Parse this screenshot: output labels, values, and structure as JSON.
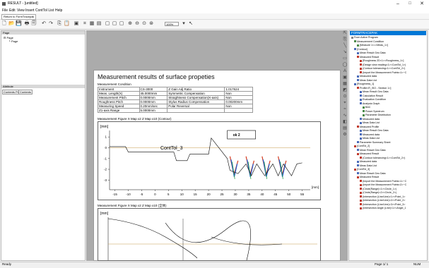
{
  "window": {
    "title": "RESULT - [untitled]",
    "controls": {
      "minimize": "–",
      "maximize": "□",
      "close": "✕"
    }
  },
  "menu": [
    "File",
    "Edit",
    "View",
    "Insert",
    "ContTol List",
    "Help"
  ],
  "return_button": "Return to FormTracepak",
  "toolbar": {
    "zoom_value": "100%"
  },
  "left_pane": {
    "page_header": "Page",
    "tree": [
      "Page",
      "Page"
    ],
    "attribute_header": "Attribute",
    "tabs": [
      "Contents Pr...",
      "Contents"
    ]
  },
  "document": {
    "title": "Measurement results of surface propeties",
    "condition_title": "Measurement Condition",
    "conditions": [
      [
        "Instrument",
        "CS-3000",
        "Z Gain Adj Ratio",
        "1.017624"
      ],
      [
        "Meas. Length(X)",
        "45.0000mm",
        "Symmetric Compensation",
        "Non"
      ],
      [
        "Measurement Pitch",
        "0.0000mm",
        "Straightness Compensation(X-axis)",
        "Non"
      ],
      [
        "Roughness Pitch",
        "0.0000mm",
        "Stylus Radius Compensation",
        "0.00200mm"
      ],
      [
        "Measuring Speed",
        "0.20mm/sec",
        "Polar Reversal",
        "Non"
      ],
      [
        "Z1-axis Range",
        "5.0000mm",
        "",
        ""
      ]
    ],
    "figure1_caption": "Measurement Figure   X Map x2   Z Map x10 (Contour)",
    "figure2_caption": "Measurement Figure   X Map x2   Z Map x10 (全体)",
    "figure1_label": "ContTol_3",
    "figure1_box": "ok   2",
    "unit_label": "[mm]"
  },
  "chart_data": {
    "type": "line",
    "title": "",
    "xlabel": "[mm]",
    "ylabel": "[mm]",
    "xlim": [
      -17,
      58
    ],
    "ylim": [
      -3.5,
      1.6
    ],
    "x_ticks": [
      -15,
      -10,
      -5,
      0,
      5,
      10,
      15,
      20,
      25,
      30,
      35,
      40,
      45,
      50,
      55
    ],
    "y_ticks": [
      1,
      0,
      -1,
      -2,
      -3
    ],
    "grid": false,
    "annotation": "ContTol_3",
    "series": [
      {
        "x": [
          -17,
          -11,
          -10,
          7,
          8,
          12,
          13,
          20,
          21,
          27,
          28,
          31,
          34,
          36,
          38,
          41,
          44,
          46,
          48,
          51,
          53,
          55
        ],
        "y": [
          0.1,
          0.1,
          -0.4,
          -0.4,
          -1.2,
          -1.2,
          -0.6,
          -0.6,
          0.9,
          -1.0,
          -2.1,
          -2.4,
          -1.5,
          -2.6,
          -1.5,
          -2.6,
          -1.5,
          -2.6,
          -1.5,
          -2.6,
          -1.5,
          -1.4
        ]
      }
    ],
    "series_colors": [
      "#000000",
      "#d63b1f",
      "#1f5fd6",
      "#2a9d4a"
    ]
  },
  "right_pane": {
    "header": "FORMTRACEPAK",
    "nodes": [
      [
        0,
        "From Active Program",
        "#888888"
      ],
      [
        1,
        "Measurement Condition",
        "#4a8a4a"
      ],
      [
        2,
        "[Measure 1<=>Meas_1>]",
        "#4a8a4a"
      ],
      [
        1,
        "[Contour]",
        "#4a6ab8"
      ],
      [
        2,
        "Mean Result Geo Data",
        "#4a6ab8"
      ],
      [
        2,
        "Measured Result",
        "#c0392b"
      ],
      [
        3,
        "[Roughness 2D<1>=Roughness_1>]",
        "#c0392b"
      ],
      [
        3,
        "(Design view reading<1><ContTol_1>)",
        "#c0392b"
      ],
      [
        3,
        "(Contour tolerancing<1><ContTol_2>)",
        "#c0392b"
      ],
      [
        3,
        "(Import the Measurement Points<1>~C",
        "#c0392b"
      ],
      [
        2,
        "Measured data",
        "#4a6ab8"
      ],
      [
        2,
        "Meas Data List",
        "#4a6ab8"
      ],
      [
        1,
        "[Roughness_1]",
        "#4a6ab8"
      ],
      [
        2,
        "Profile<R_ISO - Section 1>]",
        "#c0392b"
      ],
      [
        3,
        "Mean Result Geo Data",
        "#4a6ab8"
      ],
      [
        3,
        "Calculation Result",
        "#4a6ab8"
      ],
      [
        3,
        "Evaluation Condition",
        "#4a6ab8"
      ],
      [
        3,
        "Analysis Graph",
        "#4a6ab8"
      ],
      [
        4,
        "BAC",
        "#4a8a4a"
      ],
      [
        4,
        "Power Spectrum",
        "#4a8a4a"
      ],
      [
        4,
        "Parameter Distribution",
        "#4a8a4a"
      ],
      [
        3,
        "Measured data",
        "#4a6ab8"
      ],
      [
        3,
        "Meas Data List",
        "#4a6ab8"
      ],
      [
        2,
        "Measured Profile",
        "#c0392b"
      ],
      [
        3,
        "Mean Result Geo Data",
        "#4a6ab8"
      ],
      [
        3,
        "Measured data",
        "#4a6ab8"
      ],
      [
        3,
        "Meas Data List",
        "#4a6ab8"
      ],
      [
        2,
        "Parameter Summary Sheet",
        "#4a6ab8"
      ],
      [
        1,
        "[ContTol_2]",
        "#c0392b"
      ],
      [
        2,
        "Mean Result Geo Data",
        "#4a6ab8"
      ],
      [
        2,
        "Measured Result",
        "#c0392b"
      ],
      [
        3,
        "(Contour tolerancing<1><ContTol_2>)",
        "#c0392b"
      ],
      [
        2,
        "Measured data",
        "#4a6ab8"
      ],
      [
        2,
        "Meas Data List",
        "#4a6ab8"
      ],
      [
        1,
        "[ContTol_3]",
        "#c0392b"
      ],
      [
        2,
        "Mean Result Geo Data",
        "#4a6ab8"
      ],
      [
        2,
        "Measured Result",
        "#c0392b"
      ],
      [
        3,
        "(Import the Measurement Points<1>~C",
        "#c0392b"
      ],
      [
        3,
        "(Import the Measurement Points<2>~C",
        "#c0392b"
      ],
      [
        3,
        "(Circle(Range)<1><Circle_1>)",
        "#c0392b"
      ],
      [
        3,
        "(Circle(Range)<2><Circle_2>)",
        "#c0392b"
      ],
      [
        3,
        "(Intersection (Line/Line)<1><Point_1>",
        "#c0392b"
      ],
      [
        3,
        "(Intersection (Line/Line)<2><Point_2>",
        "#c0392b"
      ],
      [
        3,
        "(Intersection (Line/Line)<3><Point_3>",
        "#c0392b"
      ],
      [
        3,
        "(Intersection Angle (Line)<1><Angle_1",
        "#c0392b"
      ]
    ]
  },
  "status": {
    "left": "Ready",
    "page": "Page  1/ 1",
    "num": "NUM"
  }
}
